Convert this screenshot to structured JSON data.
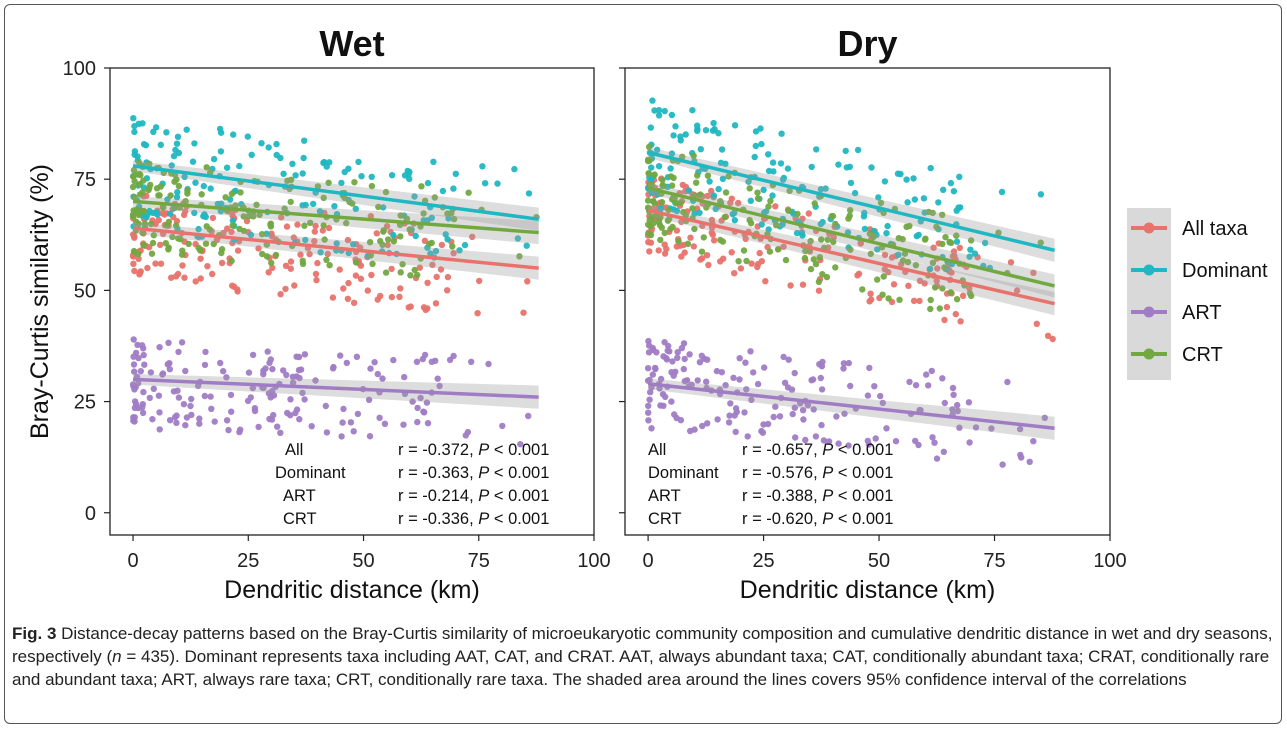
{
  "chart_data": [
    {
      "type": "scatter",
      "title": "Wet",
      "xlabel": "Dendritic distance (km)",
      "ylabel": "Bray-Curtis similarity (%)",
      "xlim": [
        -5,
        100
      ],
      "ylim": [
        -5,
        100
      ],
      "xticks": [
        "0",
        "25",
        "50",
        "75",
        "100"
      ],
      "yticks": [
        "0",
        "25",
        "50",
        "75",
        "100"
      ],
      "series": [
        {
          "name": "All taxa",
          "color": "#e8736c",
          "fit": {
            "x": [
              0,
              88
            ],
            "y": [
              64,
              55
            ]
          },
          "cloud": {
            "y_spread": [
              -12,
              8
            ]
          }
        },
        {
          "name": "Dominant",
          "color": "#1fb7c1",
          "fit": {
            "x": [
              0,
              88
            ],
            "y": [
              78,
              66
            ]
          },
          "cloud": {
            "y_spread": [
              -14,
              11
            ]
          }
        },
        {
          "name": "ART",
          "color": "#a07cc5",
          "fit": {
            "x": [
              0,
              88
            ],
            "y": [
              30,
              26
            ]
          },
          "cloud": {
            "y_spread": [
              -11,
              9
            ]
          }
        },
        {
          "name": "CRT",
          "color": "#72a840",
          "fit": {
            "x": [
              0,
              88
            ],
            "y": [
              70,
              63
            ]
          },
          "cloud": {
            "y_spread": [
              -12,
              9
            ]
          }
        }
      ],
      "stats": [
        {
          "group": "All",
          "r": "r = -0.372,",
          "p": "< 0.001"
        },
        {
          "group": "Dominant",
          "r": "r = -0.363,",
          "p": "< 0.001"
        },
        {
          "group": "ART",
          "r": "r = -0.214,",
          "p": "< 0.001"
        },
        {
          "group": "CRT",
          "r": "r = -0.336,",
          "p": "< 0.001"
        }
      ]
    },
    {
      "type": "scatter",
      "title": "Dry",
      "xlabel": "Dendritic distance (km)",
      "ylabel": "",
      "xlim": [
        -5,
        100
      ],
      "ylim": [
        -5,
        100
      ],
      "xticks": [
        "0",
        "25",
        "50",
        "75",
        "100"
      ],
      "yticks": [
        "0",
        "25",
        "50",
        "75",
        "100"
      ],
      "series": [
        {
          "name": "All taxa",
          "color": "#e8736c",
          "fit": {
            "x": [
              0,
              88
            ],
            "y": [
              68,
              47
            ]
          },
          "cloud": {
            "y_spread": [
              -10,
              8
            ]
          }
        },
        {
          "name": "Dominant",
          "color": "#1fb7c1",
          "fit": {
            "x": [
              0,
              88
            ],
            "y": [
              81,
              59
            ]
          },
          "cloud": {
            "y_spread": [
              -12,
              12
            ]
          }
        },
        {
          "name": "ART",
          "color": "#a07cc5",
          "fit": {
            "x": [
              0,
              88
            ],
            "y": [
              29,
              19
            ]
          },
          "cloud": {
            "y_spread": [
              -10,
              10
            ]
          }
        },
        {
          "name": "CRT",
          "color": "#72a840",
          "fit": {
            "x": [
              0,
              88
            ],
            "y": [
              73,
              51
            ]
          },
          "cloud": {
            "y_spread": [
              -12,
              10
            ]
          }
        }
      ],
      "stats": [
        {
          "group": "All",
          "r": "r = -0.657,",
          "p": "< 0.001"
        },
        {
          "group": "Dominant",
          "r": "r = -0.576,",
          "p": "< 0.001"
        },
        {
          "group": "ART",
          "r": "r = -0.388,",
          "p": "< 0.001"
        },
        {
          "group": "CRT",
          "r": "r = -0.620,",
          "p": "< 0.001"
        }
      ]
    }
  ],
  "legend": {
    "position": "right",
    "items": [
      {
        "label": "All taxa",
        "color": "#e8736c"
      },
      {
        "label": "Dominant",
        "color": "#1fb7c1"
      },
      {
        "label": "ART",
        "color": "#a07cc5"
      },
      {
        "label": "CRT",
        "color": "#72a840"
      }
    ]
  },
  "p_symbol": "P",
  "caption": {
    "fig_label": "Fig. 3",
    "text_a": " Distance-decay patterns based on the Bray-Curtis similarity of microeukaryotic community composition and cumulative dendritic distance in wet and dry seasons, respectively (",
    "n_symbol": "n",
    "text_b": " = 435). Dominant represents taxa including AAT, CAT, and CRAT. AAT, always abundant taxa; CAT, conditionally abundant taxa; CRAT, conditionally rare and abundant taxa; ART, always rare taxa; CRT, conditionally rare taxa. The shaded area around the lines covers 95% confidence interval of the correlations"
  }
}
